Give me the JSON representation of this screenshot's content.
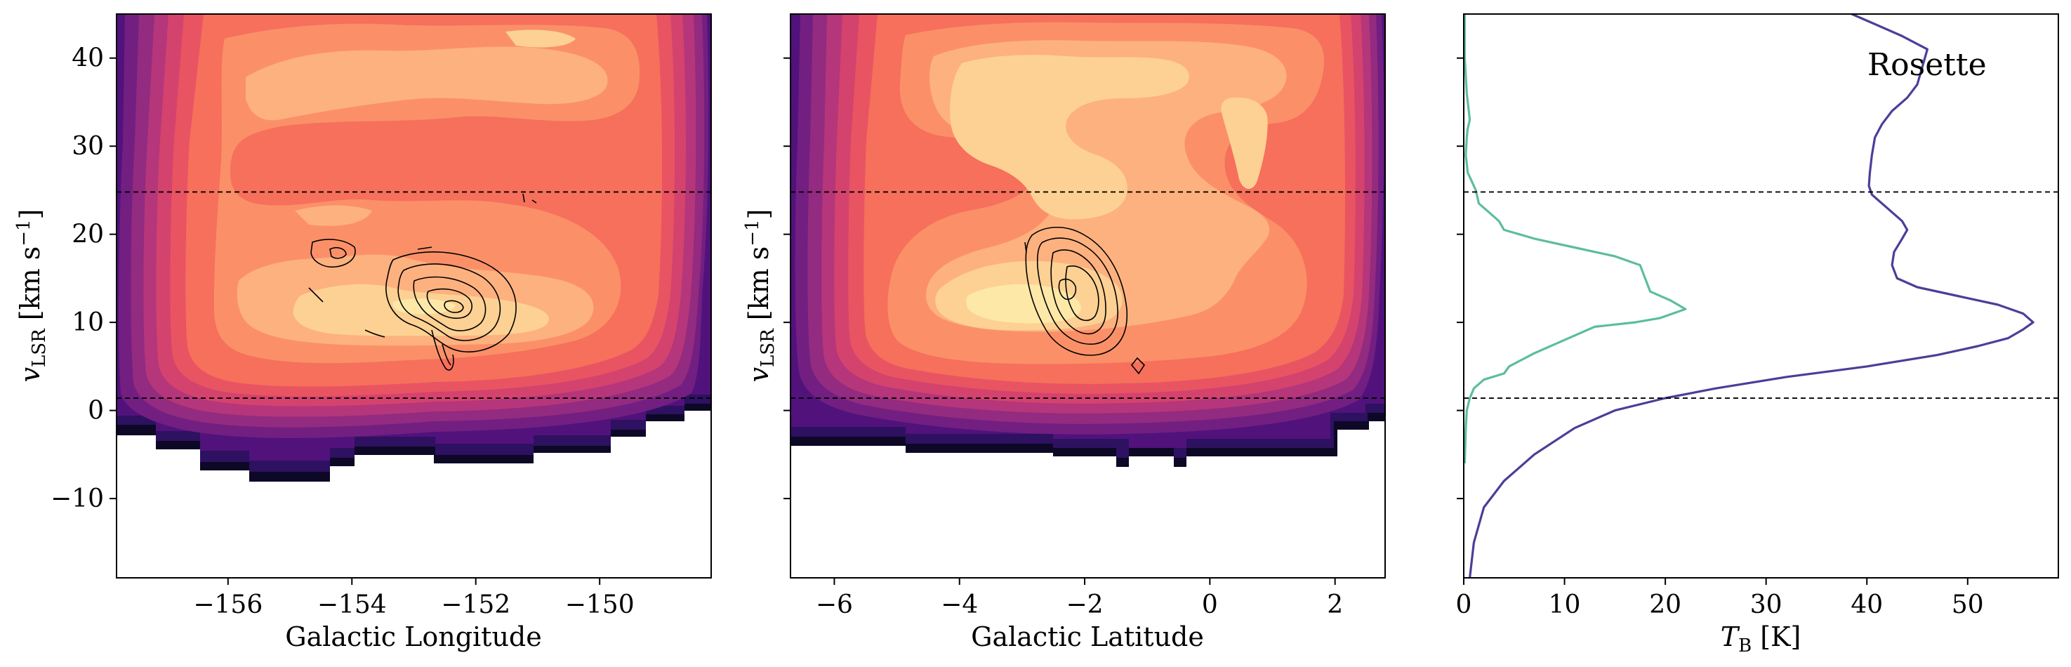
{
  "chart_data": [
    {
      "type": "heatmap",
      "panel": "left",
      "xlabel": "Galactic Longitude",
      "ylabel": "v_LSR [km s^-1]",
      "xlim": [
        -157.8,
        -148.2
      ],
      "ylim": [
        -19,
        45
      ],
      "xticks": [
        -156,
        -154,
        -152,
        -150
      ],
      "xtick_labels": [
        "−156",
        "−154",
        "−152",
        "−150"
      ],
      "yticks": [
        -10,
        0,
        10,
        20,
        30,
        40
      ],
      "ytick_labels": [
        "−10",
        "0",
        "10",
        "20",
        "30",
        "40"
      ],
      "hlines": [
        24.8,
        1.4
      ],
      "colormap": "magma",
      "overlay": "black contours"
    },
    {
      "type": "heatmap",
      "panel": "middle",
      "xlabel": "Galactic Latitude",
      "ylabel": "v_LSR [km s^-1]",
      "xlim": [
        -6.7,
        2.8
      ],
      "ylim": [
        -19,
        45
      ],
      "xticks": [
        -6,
        -4,
        -2,
        0,
        2
      ],
      "xtick_labels": [
        "−6",
        "−4",
        "−2",
        "0",
        "2"
      ],
      "yticks": [
        -10,
        0,
        10,
        20,
        30,
        40
      ],
      "hlines": [
        24.8,
        1.4
      ],
      "colormap": "magma",
      "overlay": "black contours"
    },
    {
      "type": "line",
      "panel": "right",
      "xlabel": "T_B [K]",
      "xlim": [
        0,
        59
      ],
      "ylim": [
        -19,
        45
      ],
      "xticks": [
        0,
        10,
        20,
        30,
        40,
        50
      ],
      "xtick_labels": [
        "0",
        "10",
        "20",
        "30",
        "40",
        "50"
      ],
      "yticks": [
        -10,
        0,
        10,
        20,
        30,
        40
      ],
      "hlines": [
        24.8,
        1.4
      ],
      "annotation": "Rosette",
      "series": [
        {
          "color": "#4a3f98",
          "points": [
            [
              0.6,
              -19
            ],
            [
              1,
              -15
            ],
            [
              2,
              -11
            ],
            [
              4,
              -8
            ],
            [
              7,
              -5
            ],
            [
              11,
              -2
            ],
            [
              15,
              0
            ],
            [
              20,
              1.4
            ],
            [
              25,
              2.5
            ],
            [
              32,
              3.8
            ],
            [
              40,
              5
            ],
            [
              47,
              6.3
            ],
            [
              51,
              7.3
            ],
            [
              54,
              8.2
            ],
            [
              55.5,
              9.2
            ],
            [
              56.5,
              10
            ],
            [
              55.5,
              11
            ],
            [
              53,
              12
            ],
            [
              49,
              13
            ],
            [
              45,
              14
            ],
            [
              43,
              15
            ],
            [
              42.5,
              16.5
            ],
            [
              42.7,
              18
            ],
            [
              43.5,
              19.5
            ],
            [
              44,
              20.5
            ],
            [
              43.5,
              21.5
            ],
            [
              42.5,
              22.5
            ],
            [
              41.5,
              23.5
            ],
            [
              40.5,
              24.5
            ],
            [
              40.2,
              25.5
            ],
            [
              40.3,
              27
            ],
            [
              40.5,
              29
            ],
            [
              40.8,
              31
            ],
            [
              41.5,
              32.5
            ],
            [
              42.5,
              34
            ],
            [
              44,
              35.5
            ],
            [
              45,
              37
            ],
            [
              45.5,
              39
            ],
            [
              46,
              41
            ],
            [
              43.5,
              42.5
            ],
            [
              40.5,
              44
            ],
            [
              38.5,
              45
            ]
          ]
        },
        {
          "color": "#5dbd9c",
          "points": [
            [
              0.1,
              -6
            ],
            [
              0.2,
              -2
            ],
            [
              0.3,
              0
            ],
            [
              0.6,
              1.4
            ],
            [
              1,
              2.5
            ],
            [
              2,
              3.5
            ],
            [
              4,
              4.2
            ],
            [
              4.5,
              5
            ],
            [
              7,
              6.5
            ],
            [
              10,
              8
            ],
            [
              13,
              9.5
            ],
            [
              17,
              10
            ],
            [
              19.5,
              10.5
            ],
            [
              22,
              11.5
            ],
            [
              20.5,
              12.5
            ],
            [
              18.5,
              13.5
            ],
            [
              18,
              15
            ],
            [
              17.5,
              16.5
            ],
            [
              15,
              17.5
            ],
            [
              11,
              18.5
            ],
            [
              7,
              19.5
            ],
            [
              4,
              20.5
            ],
            [
              3.5,
              21.5
            ],
            [
              2.5,
              22.5
            ],
            [
              1.5,
              23.5
            ],
            [
              1.2,
              25
            ],
            [
              0.8,
              26
            ],
            [
              0.4,
              27
            ],
            [
              0.2,
              29
            ],
            [
              0.3,
              31
            ],
            [
              0.4,
              32
            ],
            [
              0.6,
              33
            ],
            [
              0.5,
              34
            ],
            [
              0.3,
              36
            ],
            [
              0.2,
              38
            ],
            [
              0.1,
              40
            ],
            [
              0.1,
              45
            ]
          ]
        }
      ]
    }
  ]
}
